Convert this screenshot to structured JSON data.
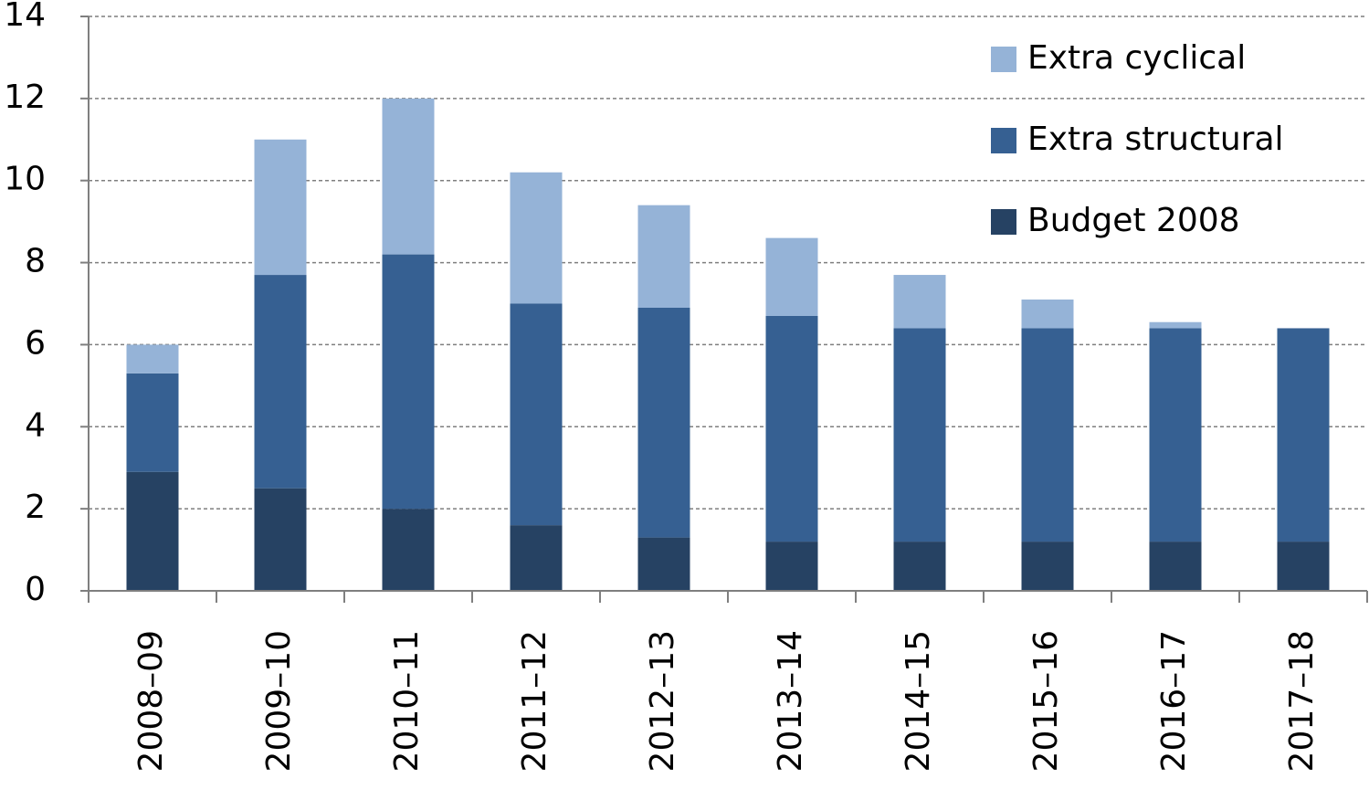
{
  "chart_data": {
    "type": "stacked_bar",
    "categories": [
      "2008–09",
      "2009–10",
      "2010–11",
      "2011–12",
      "2012–13",
      "2013–14",
      "2014–15",
      "2015–16",
      "2016–17",
      "2017–18"
    ],
    "series": [
      {
        "name": "Budget 2008",
        "color": "#264263",
        "values": [
          2.9,
          2.5,
          2.0,
          1.6,
          1.3,
          1.2,
          1.2,
          1.2,
          1.2,
          1.2
        ]
      },
      {
        "name": "Extra structural",
        "color": "#366092",
        "values": [
          2.4,
          5.2,
          6.2,
          5.4,
          5.6,
          5.5,
          5.2,
          5.2,
          5.2,
          5.2
        ]
      },
      {
        "name": "Extra cyclical",
        "color": "#95b3d7",
        "values": [
          0.7,
          3.3,
          3.8,
          3.2,
          2.5,
          1.9,
          1.3,
          0.7,
          0.15,
          0
        ]
      }
    ],
    "ylim": [
      0,
      14
    ],
    "yticks": [
      0,
      2,
      4,
      6,
      8,
      10,
      12,
      14
    ],
    "grid": true,
    "legend": "top-right"
  }
}
